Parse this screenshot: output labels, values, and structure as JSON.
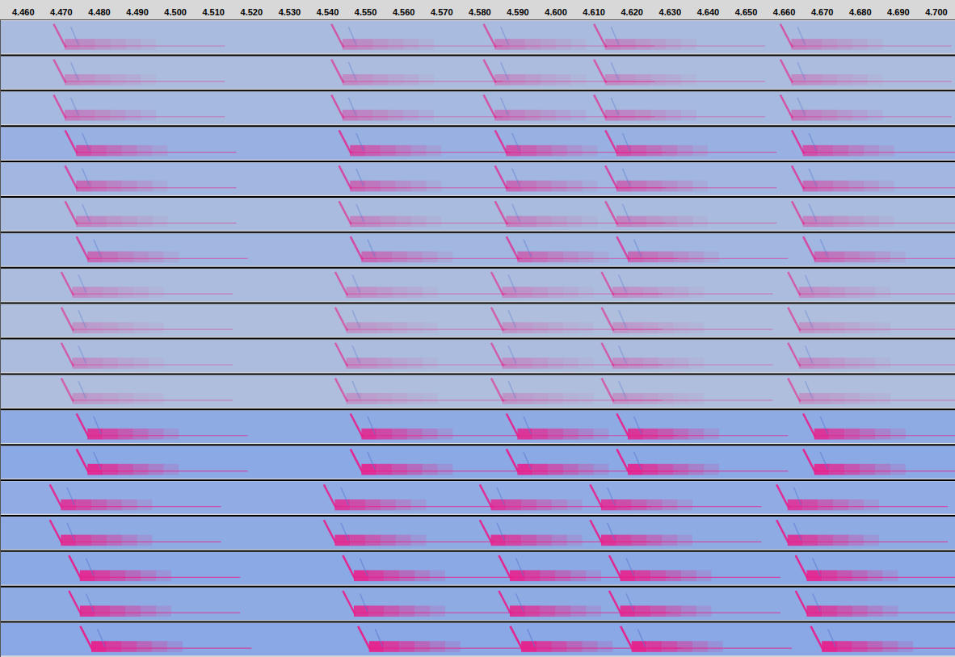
{
  "chart_data": {
    "type": "spectrogram",
    "xlim": [
      4.454,
      4.705
    ],
    "xticks": [
      {
        "value": 4.46,
        "label": "4.460"
      },
      {
        "value": 4.47,
        "label": "4.470"
      },
      {
        "value": 4.48,
        "label": "4.480"
      },
      {
        "value": 4.49,
        "label": "4.490"
      },
      {
        "value": 4.5,
        "label": "4.500"
      },
      {
        "value": 4.51,
        "label": "4.510"
      },
      {
        "value": 4.52,
        "label": "4.520"
      },
      {
        "value": 4.53,
        "label": "4.530"
      },
      {
        "value": 4.54,
        "label": "4.540"
      },
      {
        "value": 4.55,
        "label": "4.550"
      },
      {
        "value": 4.56,
        "label": "4.560"
      },
      {
        "value": 4.57,
        "label": "4.570"
      },
      {
        "value": 4.58,
        "label": "4.580"
      },
      {
        "value": 4.59,
        "label": "4.590"
      },
      {
        "value": 4.6,
        "label": "4.600"
      },
      {
        "value": 4.61,
        "label": "4.610"
      },
      {
        "value": 4.62,
        "label": "4.620"
      },
      {
        "value": 4.63,
        "label": "4.630"
      },
      {
        "value": 4.64,
        "label": "4.640"
      },
      {
        "value": 4.65,
        "label": "4.650"
      },
      {
        "value": 4.66,
        "label": "4.660"
      },
      {
        "value": 4.67,
        "label": "4.670"
      },
      {
        "value": 4.68,
        "label": "4.680"
      },
      {
        "value": 4.69,
        "label": "4.690"
      },
      {
        "value": 4.7,
        "label": "4.700"
      }
    ],
    "tick_labels": "x",
    "color": "#e8208c",
    "channels": [
      {
        "onsets": [
          4.468,
          4.541,
          4.581,
          4.61,
          4.659
        ],
        "intensity": 0.35
      },
      {
        "onsets": [
          4.468,
          4.541,
          4.581,
          4.61,
          4.659
        ],
        "intensity": 0.3
      },
      {
        "onsets": [
          4.468,
          4.541,
          4.581,
          4.61,
          4.659
        ],
        "intensity": 0.4
      },
      {
        "onsets": [
          4.471,
          4.543,
          4.584,
          4.613,
          4.662
        ],
        "intensity": 0.65
      },
      {
        "onsets": [
          4.471,
          4.543,
          4.584,
          4.613,
          4.662
        ],
        "intensity": 0.5
      },
      {
        "onsets": [
          4.471,
          4.543,
          4.584,
          4.613,
          4.662
        ],
        "intensity": 0.35
      },
      {
        "onsets": [
          4.474,
          4.546,
          4.587,
          4.616,
          4.665
        ],
        "intensity": 0.5
      },
      {
        "onsets": [
          4.47,
          4.542,
          4.583,
          4.612,
          4.661
        ],
        "intensity": 0.3
      },
      {
        "onsets": [
          4.47,
          4.542,
          4.583,
          4.612,
          4.661
        ],
        "intensity": 0.25
      },
      {
        "onsets": [
          4.47,
          4.542,
          4.583,
          4.612,
          4.661
        ],
        "intensity": 0.3
      },
      {
        "onsets": [
          4.47,
          4.542,
          4.583,
          4.612,
          4.661
        ],
        "intensity": 0.25
      },
      {
        "onsets": [
          4.474,
          4.546,
          4.587,
          4.616,
          4.665
        ],
        "intensity": 0.85
      },
      {
        "onsets": [
          4.474,
          4.546,
          4.587,
          4.616,
          4.665
        ],
        "intensity": 0.9
      },
      {
        "onsets": [
          4.467,
          4.539,
          4.58,
          4.609,
          4.658
        ],
        "intensity": 0.8
      },
      {
        "onsets": [
          4.467,
          4.539,
          4.58,
          4.609,
          4.658
        ],
        "intensity": 0.85
      },
      {
        "onsets": [
          4.472,
          4.544,
          4.585,
          4.614,
          4.663
        ],
        "intensity": 0.9
      },
      {
        "onsets": [
          4.472,
          4.544,
          4.585,
          4.614,
          4.663
        ],
        "intensity": 0.85
      },
      {
        "onsets": [
          4.475,
          4.548,
          4.588,
          4.617,
          4.667
        ],
        "intensity": 0.95
      }
    ]
  }
}
